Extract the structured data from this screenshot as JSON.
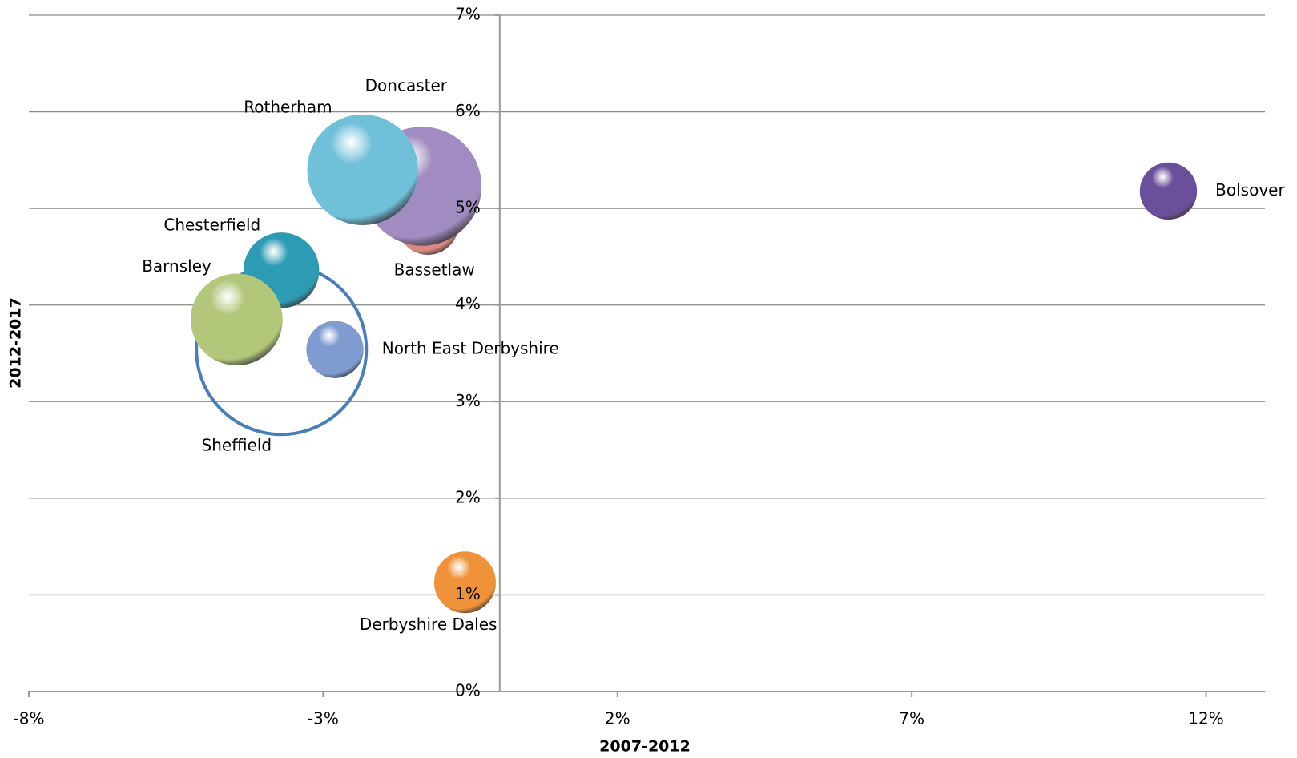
{
  "chart_data": {
    "type": "bubble",
    "x_label": "2007-2012",
    "y_label": "2012-2017",
    "xlim": [
      -8,
      13
    ],
    "ylim": [
      0,
      7
    ],
    "xticks": [
      {
        "value": -8,
        "label": "-8%"
      },
      {
        "value": -3,
        "label": "-3%"
      },
      {
        "value": 2,
        "label": "2%"
      },
      {
        "value": 7,
        "label": "7%"
      },
      {
        "value": 12,
        "label": "12%"
      }
    ],
    "yticks": [
      {
        "value": 0,
        "label": "0%"
      },
      {
        "value": 1,
        "label": "1%"
      },
      {
        "value": 2,
        "label": "2%"
      },
      {
        "value": 3,
        "label": "3%"
      },
      {
        "value": 4,
        "label": "4%"
      },
      {
        "value": 5,
        "label": "5%"
      },
      {
        "value": 6,
        "label": "6%"
      },
      {
        "value": 7,
        "label": "7%"
      }
    ],
    "grid": true,
    "points": [
      {
        "name": "Sheffield",
        "x": -3.71,
        "y": 3.54,
        "size": 106,
        "color": "#4a7ebb",
        "filled": false,
        "label_position": "below-left"
      },
      {
        "name": "Bassetlaw",
        "x": -1.22,
        "y": 4.84,
        "size": 14,
        "color": "#d98a80",
        "filled": true,
        "label_position": "below"
      },
      {
        "name": "Doncaster",
        "x": -1.32,
        "y": 5.23,
        "size": 52,
        "color": "#a08cc0",
        "filled": true,
        "label_position": "above"
      },
      {
        "name": "Rotherham",
        "x": -2.33,
        "y": 5.4,
        "size": 45,
        "color": "#6fc0d8",
        "filled": true,
        "label_position": "above-left"
      },
      {
        "name": "Chesterfield",
        "x": -3.71,
        "y": 4.36,
        "size": 21,
        "color": "#2e9bb5",
        "filled": true,
        "label_position": "above-left"
      },
      {
        "name": "Barnsley",
        "x": -4.47,
        "y": 3.85,
        "size": 31,
        "color": "#b3c77a",
        "filled": true,
        "label_position": "above-left"
      },
      {
        "name": "North East Derbyshire",
        "x": -2.8,
        "y": 3.54,
        "size": 12,
        "color": "#7f9bd0",
        "filled": true,
        "label_position": "right"
      },
      {
        "name": "Derbyshire Dales",
        "x": -0.59,
        "y": 1.13,
        "size": 14,
        "color": "#f0923a",
        "filled": true,
        "label_position": "below-left"
      },
      {
        "name": "Bolsover",
        "x": 11.36,
        "y": 5.18,
        "size": 12,
        "color": "#6a4f9a",
        "filled": true,
        "label_position": "right"
      }
    ]
  }
}
